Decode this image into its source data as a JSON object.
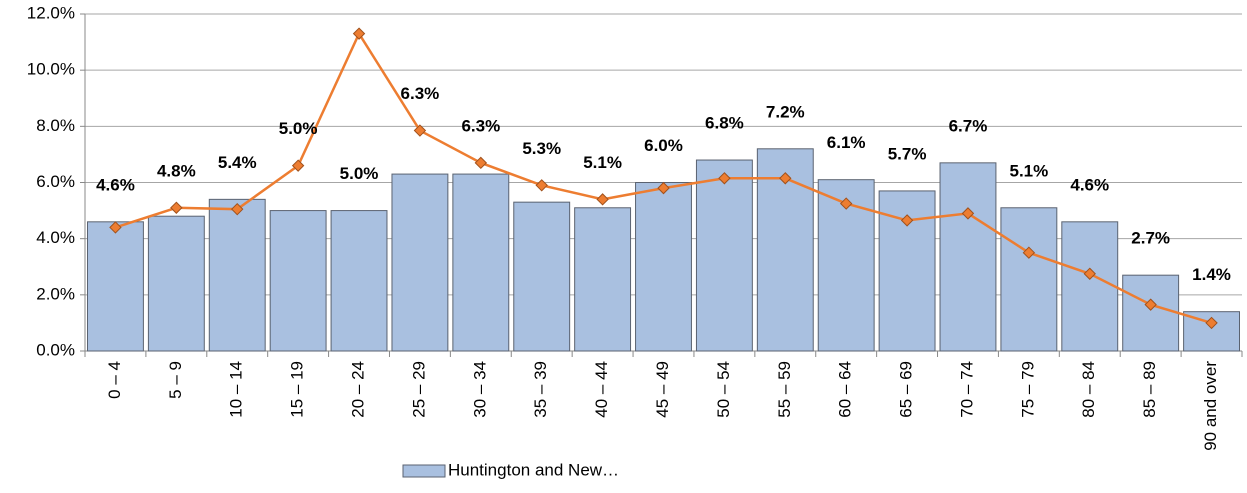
{
  "chart_data": {
    "type": "bar",
    "categories": [
      "0 – 4",
      "5 – 9",
      "10 – 14",
      "15 – 19",
      "20 – 24",
      "25 – 29",
      "30 – 34",
      "35 – 39",
      "40 – 44",
      "45 – 49",
      "50 – 54",
      "55 – 59",
      "60 – 64",
      "65 – 69",
      "70 – 74",
      "75 – 79",
      "80 – 84",
      "85 – 89",
      "90 and over"
    ],
    "series": [
      {
        "name": "Huntington and New…",
        "type": "bar",
        "color": "#a9c0e0",
        "values": [
          4.6,
          4.8,
          5.4,
          5.0,
          5.0,
          6.3,
          6.3,
          5.3,
          5.1,
          6.0,
          6.8,
          7.2,
          6.1,
          5.7,
          6.7,
          5.1,
          4.6,
          2.7,
          1.4
        ],
        "value_labels": [
          "4.6%",
          "4.8%",
          "5.4%",
          "5.0%",
          "5.0%",
          "6.3%",
          "6.3%",
          "5.3%",
          "5.1%",
          "6.0%",
          "6.8%",
          "7.2%",
          "6.1%",
          "5.7%",
          "6.7%",
          "5.1%",
          "4.6%",
          "2.7%",
          "1.4%"
        ]
      },
      {
        "type": "line",
        "color": "#ed7d31",
        "values": [
          4.4,
          5.1,
          5.05,
          6.6,
          11.3,
          7.85,
          6.7,
          5.9,
          5.4,
          5.8,
          6.15,
          6.15,
          5.25,
          4.65,
          4.9,
          3.5,
          2.75,
          1.65,
          1.0
        ]
      }
    ],
    "ylim": [
      0,
      12
    ],
    "yticks": [
      {
        "value": 0,
        "label": "0.0%"
      },
      {
        "value": 2,
        "label": "2.0%"
      },
      {
        "value": 4,
        "label": "4.0%"
      },
      {
        "value": 6,
        "label": "6.0%"
      },
      {
        "value": 8,
        "label": "8.0%"
      },
      {
        "value": 10,
        "label": "10.0%"
      },
      {
        "value": 12,
        "label": "12.0%"
      }
    ],
    "grid": true
  }
}
